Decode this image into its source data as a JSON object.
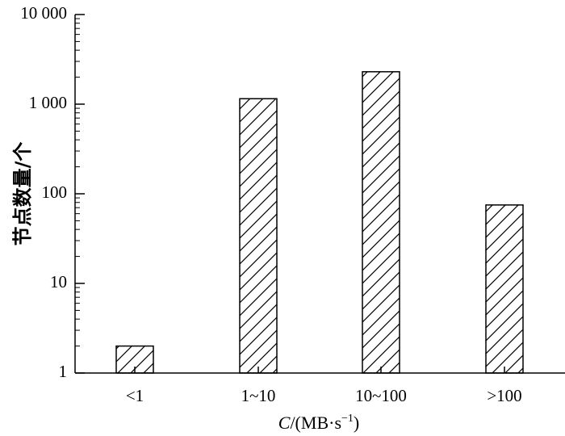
{
  "chart_data": {
    "type": "bar",
    "title": "",
    "ylabel": "节点数量/个",
    "xlabel": {
      "var": "C",
      "text": "/(MB·s",
      "sup": "−1",
      "close": ")"
    },
    "categories": [
      "<1",
      "1~10",
      "10~100",
      ">100"
    ],
    "values": [
      2,
      1150,
      2300,
      75
    ],
    "y_scale": "log",
    "ylim": [
      1,
      10000
    ],
    "y_ticks": [
      {
        "value": 1,
        "label": "1"
      },
      {
        "value": 10,
        "label": "10"
      },
      {
        "value": 100,
        "label": "100"
      },
      {
        "value": 1000,
        "label": "1 000"
      },
      {
        "value": 10000,
        "label": "10 000"
      }
    ],
    "bar_fill": "hatched",
    "grid": false,
    "legend": "none"
  }
}
